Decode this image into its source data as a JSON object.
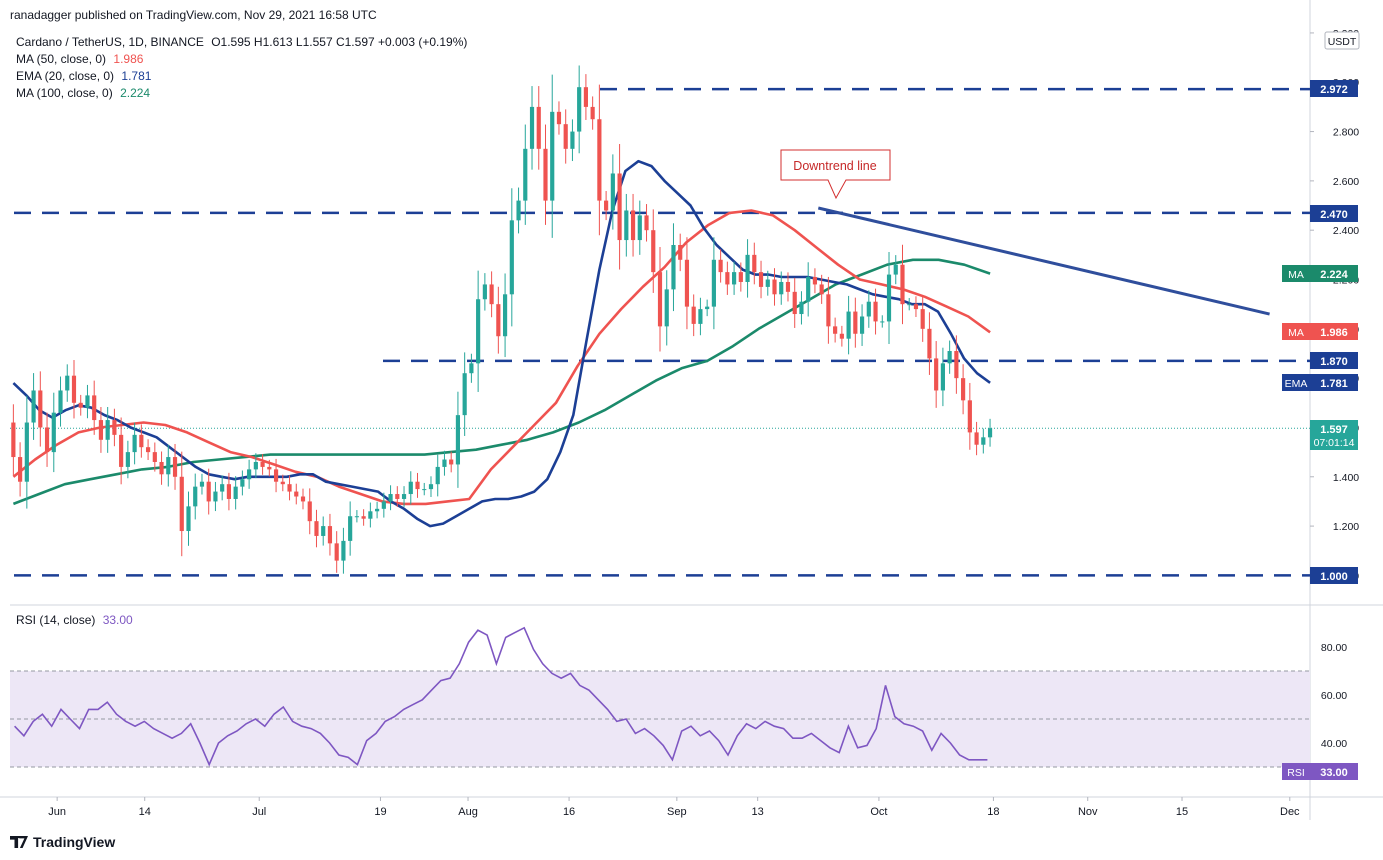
{
  "header": {
    "publisher": "ranadagger published on TradingView.com, Nov 29, 2021 16:58 UTC",
    "symbol": "Cardano / TetherUS, 1D, BINANCE",
    "ohlc": "O1.595  H1.613  L1.557  C1.597  +0.003 (+0.19%)",
    "indicators": [
      {
        "label": "MA (50, close, 0)",
        "value": "1.986",
        "color": "#ef5350"
      },
      {
        "label": "EMA (20, close, 0)",
        "value": "1.781",
        "color": "#1c3f95"
      },
      {
        "label": "MA (100, close, 0)",
        "value": "2.224",
        "color": "#1b8a6b"
      }
    ]
  },
  "colors": {
    "up": "#26a69a",
    "down": "#ef5350",
    "ema20": "#1c3f95",
    "ma50": "#ef5350",
    "ma100": "#1b8a6b",
    "levels": "#1c3f95",
    "rsi": "#7e57c2",
    "rsi_band": "#ede7f6"
  },
  "price_axis": {
    "currency": "USDT",
    "ticks": [
      "3.200",
      "3.000",
      "2.800",
      "2.600",
      "2.400",
      "2.200",
      "2.000",
      "1.800",
      "1.600",
      "1.400",
      "1.200",
      "1.000"
    ]
  },
  "time_axis": {
    "ticks": [
      "Jun",
      "14",
      "Jul",
      "19",
      "Aug",
      "16",
      "Sep",
      "13",
      "Oct",
      "18",
      "Nov",
      "15",
      "Dec"
    ]
  },
  "annotation": {
    "text": "Downtrend line"
  },
  "badges": {
    "last_price": "1.597",
    "countdown": "07:01:14",
    "ema_label": "EMA",
    "ema_value": "1.781",
    "ma_label": "MA",
    "ma100_value": "2.224",
    "ma50_value": "1.986"
  },
  "rsi": {
    "legend": "RSI (14, close)",
    "value": "33.00",
    "label": "RSI",
    "ticks": [
      "80.00",
      "60.00",
      "40.00"
    ],
    "overbought": 70,
    "oversold": 30
  },
  "chart_data": {
    "type": "candlestick",
    "pair": "ADA/USDT",
    "x_range": [
      "2021-05-25",
      "2021-12-04"
    ],
    "y_range": [
      0.88,
      3.22
    ],
    "horizontal_levels": [
      2.972,
      2.47,
      1.87,
      1.0
    ],
    "downtrend_line": {
      "from": [
        "2021-09-22",
        2.49
      ],
      "to": [
        "2021-11-28",
        2.06
      ]
    },
    "closes": [
      1.48,
      1.38,
      1.62,
      1.75,
      1.6,
      1.5,
      1.66,
      1.75,
      1.81,
      1.7,
      1.68,
      1.73,
      1.63,
      1.55,
      1.63,
      1.57,
      1.44,
      1.5,
      1.57,
      1.52,
      1.5,
      1.46,
      1.41,
      1.48,
      1.4,
      1.18,
      1.28,
      1.36,
      1.38,
      1.3,
      1.34,
      1.37,
      1.31,
      1.36,
      1.39,
      1.43,
      1.46,
      1.44,
      1.43,
      1.38,
      1.37,
      1.34,
      1.32,
      1.3,
      1.22,
      1.16,
      1.2,
      1.13,
      1.06,
      1.14,
      1.24,
      1.24,
      1.23,
      1.26,
      1.27,
      1.3,
      1.33,
      1.31,
      1.33,
      1.38,
      1.35,
      1.35,
      1.37,
      1.44,
      1.47,
      1.45,
      1.65,
      1.82,
      1.86,
      2.12,
      2.18,
      2.1,
      1.97,
      2.14,
      2.44,
      2.52,
      2.73,
      2.9,
      2.73,
      2.52,
      2.88,
      2.83,
      2.73,
      2.8,
      2.98,
      2.9,
      2.85,
      2.52,
      2.48,
      2.63,
      2.36,
      2.48,
      2.36,
      2.46,
      2.4,
      2.23,
      2.01,
      2.16,
      2.34,
      2.28,
      2.09,
      2.02,
      2.08,
      2.09,
      2.28,
      2.23,
      2.18,
      2.23,
      2.19,
      2.3,
      2.23,
      2.17,
      2.2,
      2.14,
      2.19,
      2.15,
      2.06,
      2.11,
      2.21,
      2.18,
      2.14,
      2.01,
      1.98,
      1.96,
      2.07,
      1.98,
      2.05,
      2.11,
      2.03,
      2.03,
      2.22,
      2.26,
      2.1,
      2.1,
      2.08,
      2.0,
      1.88,
      1.75,
      1.86,
      1.91,
      1.8,
      1.71,
      1.58,
      1.53,
      1.56,
      1.597
    ],
    "ema20": [
      1.78,
      1.73,
      1.67,
      1.64,
      1.67,
      1.69,
      1.68,
      1.65,
      1.63,
      1.6,
      1.58,
      1.56,
      1.52,
      1.48,
      1.44,
      1.41,
      1.4,
      1.39,
      1.4,
      1.4,
      1.4,
      1.4,
      1.41,
      1.41,
      1.38,
      1.37,
      1.36,
      1.35,
      1.34,
      1.3,
      1.27,
      1.23,
      1.2,
      1.21,
      1.24,
      1.27,
      1.3,
      1.31,
      1.31,
      1.32,
      1.34,
      1.39,
      1.5,
      1.65,
      1.95,
      2.24,
      2.48,
      2.64,
      2.68,
      2.66,
      2.6,
      2.55,
      2.5,
      2.41,
      2.34,
      2.29,
      2.24,
      2.22,
      2.22,
      2.21,
      2.21,
      2.21,
      2.2,
      2.19,
      2.18,
      2.16,
      2.14,
      2.13,
      2.12,
      2.1,
      2.1,
      2.07,
      1.98,
      1.88,
      1.82,
      1.781
    ],
    "ma50": [
      1.4,
      1.47,
      1.53,
      1.58,
      1.6,
      1.61,
      1.62,
      1.61,
      1.58,
      1.54,
      1.5,
      1.48,
      1.45,
      1.42,
      1.4,
      1.36,
      1.33,
      1.3,
      1.29,
      1.29,
      1.3,
      1.31,
      1.43,
      1.52,
      1.61,
      1.7,
      1.85,
      1.98,
      2.08,
      2.17,
      2.25,
      2.35,
      2.42,
      2.47,
      2.48,
      2.46,
      2.4,
      2.33,
      2.26,
      2.2,
      2.18,
      2.16,
      2.13,
      2.09,
      2.05,
      1.986
    ],
    "ma100": [
      1.29,
      1.33,
      1.37,
      1.39,
      1.41,
      1.43,
      1.44,
      1.46,
      1.47,
      1.48,
      1.49,
      1.49,
      1.49,
      1.49,
      1.49,
      1.49,
      1.49,
      1.5,
      1.51,
      1.53,
      1.55,
      1.58,
      1.62,
      1.67,
      1.73,
      1.79,
      1.84,
      1.87,
      1.93,
      2.0,
      2.06,
      2.12,
      2.18,
      2.22,
      2.26,
      2.28,
      2.28,
      2.26,
      2.224
    ],
    "rsi": [
      47,
      43,
      49,
      52,
      47,
      54,
      50,
      46,
      54,
      54,
      57,
      52,
      49,
      47,
      49,
      46,
      44,
      42,
      44,
      48,
      40,
      31,
      40,
      43,
      45,
      48,
      50,
      47,
      52,
      55,
      49,
      47,
      46,
      44,
      40,
      35,
      34,
      31,
      41,
      44,
      49,
      51,
      54,
      56,
      58,
      62,
      66,
      67,
      73,
      82,
      87,
      85,
      73,
      84,
      86,
      88,
      79,
      73,
      69,
      67,
      69,
      64,
      62,
      58,
      54,
      49,
      50,
      44,
      46,
      43,
      39,
      33,
      45,
      47,
      43,
      45,
      41,
      35,
      43,
      48,
      46,
      49,
      47,
      46,
      42,
      42,
      44,
      41,
      38,
      36,
      47,
      38,
      39,
      46,
      64,
      51,
      48,
      47,
      45,
      37,
      44,
      40,
      35,
      33,
      33,
      33.0
    ]
  }
}
